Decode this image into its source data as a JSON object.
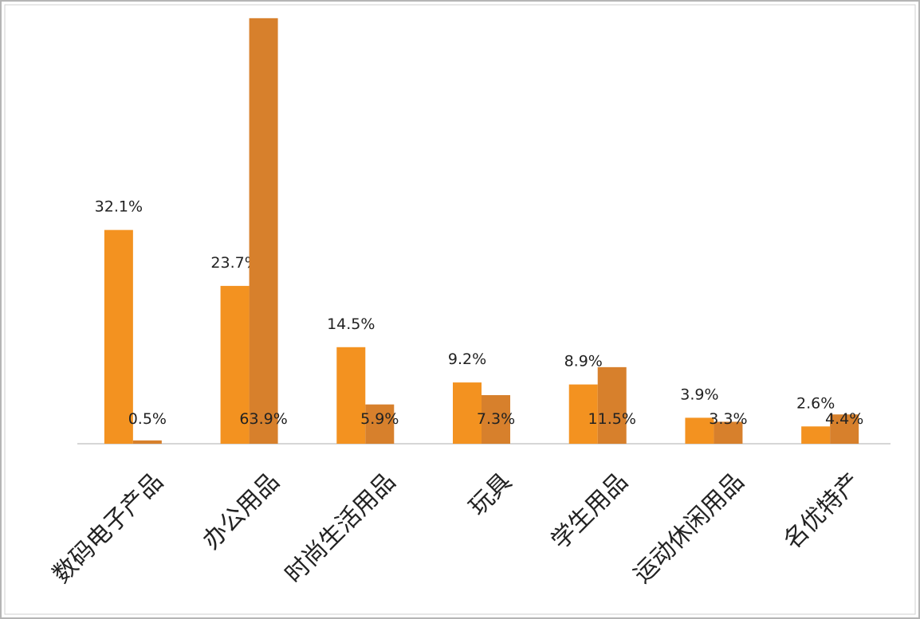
{
  "chart_data": {
    "type": "bar",
    "categories": [
      "数码电子产品",
      "办公用品",
      "时尚生活用品",
      "玩具",
      "学生用品",
      "运动休闲用品",
      "名优特产"
    ],
    "series": [
      {
        "color": "#f39220",
        "values": [
          32.1,
          23.7,
          14.5,
          9.2,
          8.9,
          3.9,
          2.6
        ],
        "value_labels": [
          "32.1%",
          "23.7%",
          "14.5%",
          "9.2%",
          "8.9%",
          "3.9%",
          "2.6%"
        ]
      },
      {
        "color": "#d7802c",
        "values": [
          0.5,
          63.9,
          5.9,
          7.3,
          11.5,
          3.3,
          4.4
        ],
        "value_labels": [
          "0.5%",
          "63.9%",
          "5.9%",
          "7.3%",
          "11.5%",
          "3.3%",
          "4.4%"
        ]
      }
    ],
    "ylim": [
      0,
      64
    ]
  }
}
